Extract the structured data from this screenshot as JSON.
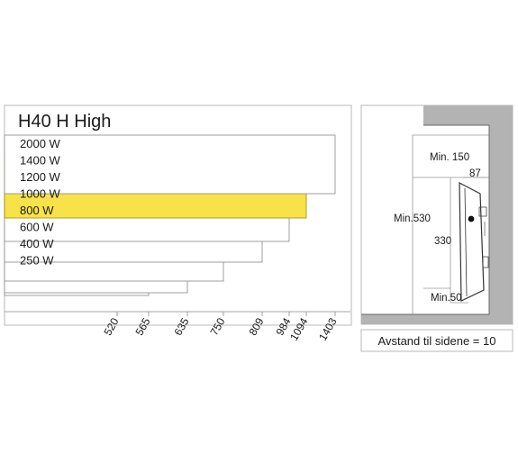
{
  "chart_data": {
    "type": "bar",
    "title": "H40 H High",
    "unit": "W",
    "series": [
      {
        "label": "2000 W",
        "value": 1403
      },
      {
        "label": "1400 W",
        "value": 1094
      },
      {
        "label": "1200 W",
        "value": 984
      },
      {
        "label": "1000 W",
        "value": 809
      },
      {
        "label": "800 W",
        "value": 750
      },
      {
        "label": "600 W",
        "value": 635
      },
      {
        "label": "400 W",
        "value": 565
      },
      {
        "label": "250 W",
        "value": 520
      }
    ],
    "x_ticks": [
      "520",
      "565",
      "635",
      "750",
      "809",
      "984",
      "1094",
      "1403"
    ],
    "highlight": "1400 W",
    "highlight_color": "#f7e24a"
  },
  "side_view": {
    "min_150": "Min. 150",
    "dim_87": "87",
    "min_530": "Min.530",
    "dim_330": "330",
    "min_50": "Min.50"
  },
  "footer": {
    "caption": "Avstand til sidene = 10"
  }
}
